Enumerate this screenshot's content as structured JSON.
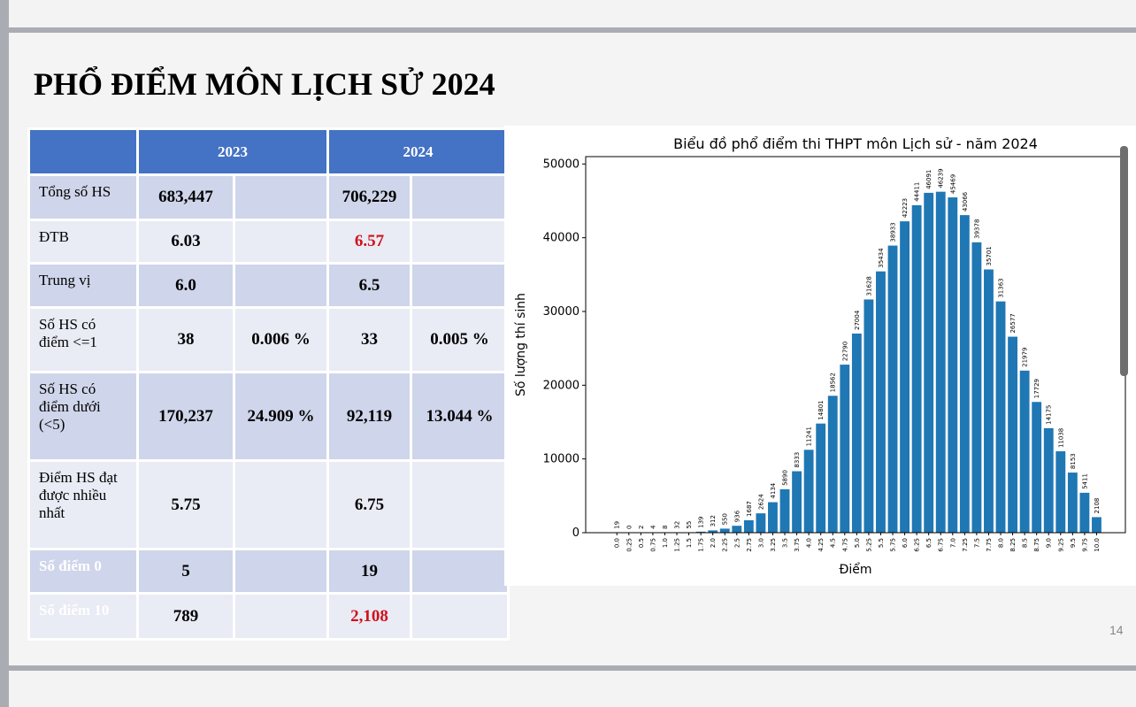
{
  "title": "PHỔ ĐIỂM MÔN LỊCH SỬ 2024",
  "table": {
    "headers": [
      "",
      "2023",
      "2024"
    ],
    "rows": [
      {
        "label": "Tổng số HS",
        "v2023": "683,447",
        "p2023": "",
        "v2024": "706,229",
        "p2024": ""
      },
      {
        "label": "ĐTB",
        "v2023": "6.03",
        "p2023": "",
        "v2024": "6.57",
        "p2024": ""
      },
      {
        "label": "Trung vị",
        "v2023": "6.0",
        "p2023": "",
        "v2024": "6.5",
        "p2024": ""
      },
      {
        "label": "Số HS có điểm <=1",
        "v2023": "38",
        "p2023": "0.006 %",
        "v2024": "33",
        "p2024": "0.005 %"
      },
      {
        "label": "Số HS có điểm dưới (<5)",
        "v2023": "170,237",
        "p2023": "24.909 %",
        "v2024": "92,119",
        "p2024": "13.044 %"
      },
      {
        "label": "Điểm HS đạt được nhiều nhất",
        "v2023": "5.75",
        "p2023": "",
        "v2024": "6.75",
        "p2024": ""
      },
      {
        "label": "Số điểm 0",
        "v2023": "5",
        "p2023": "",
        "v2024": "19",
        "p2024": ""
      },
      {
        "label": "Số điểm 10",
        "v2023": "789",
        "p2023": "",
        "v2024": "2,108",
        "p2024": ""
      }
    ],
    "highlight_color": "#d0111b"
  },
  "page_number": "14",
  "chart_data": {
    "type": "bar",
    "title": "Biểu đồ phổ điểm thi THPT môn Lịch sử - năm 2024",
    "xlabel": "Điểm",
    "ylabel": "Số lượng thí sinh",
    "ylim": [
      0,
      51000
    ],
    "yticks": [
      0,
      10000,
      20000,
      30000,
      40000,
      50000
    ],
    "color": "#1f77b4",
    "categories": [
      "0.0",
      "0.25",
      "0.5",
      "0.75",
      "1.0",
      "1.25",
      "1.5",
      "1.75",
      "2.0",
      "2.25",
      "2.5",
      "2.75",
      "3.0",
      "3.25",
      "3.5",
      "3.75",
      "4.0",
      "4.25",
      "4.5",
      "4.75",
      "5.0",
      "5.25",
      "5.5",
      "5.75",
      "6.0",
      "6.25",
      "6.5",
      "6.75",
      "7.0",
      "7.25",
      "7.5",
      "7.75",
      "8.0",
      "8.25",
      "8.5",
      "8.75",
      "9.0",
      "9.25",
      "9.5",
      "9.75",
      "10.0"
    ],
    "values": [
      19,
      0,
      2,
      4,
      8,
      32,
      55,
      139,
      312,
      550,
      936,
      1687,
      2624,
      4134,
      5890,
      8333,
      11241,
      14801,
      18562,
      22790,
      27004,
      31628,
      35434,
      38933,
      42223,
      44411,
      46091,
      46239,
      45469,
      43066,
      39378,
      35701,
      31363,
      26577,
      21979,
      17729,
      14175,
      11038,
      8153,
      5411,
      2108
    ]
  }
}
